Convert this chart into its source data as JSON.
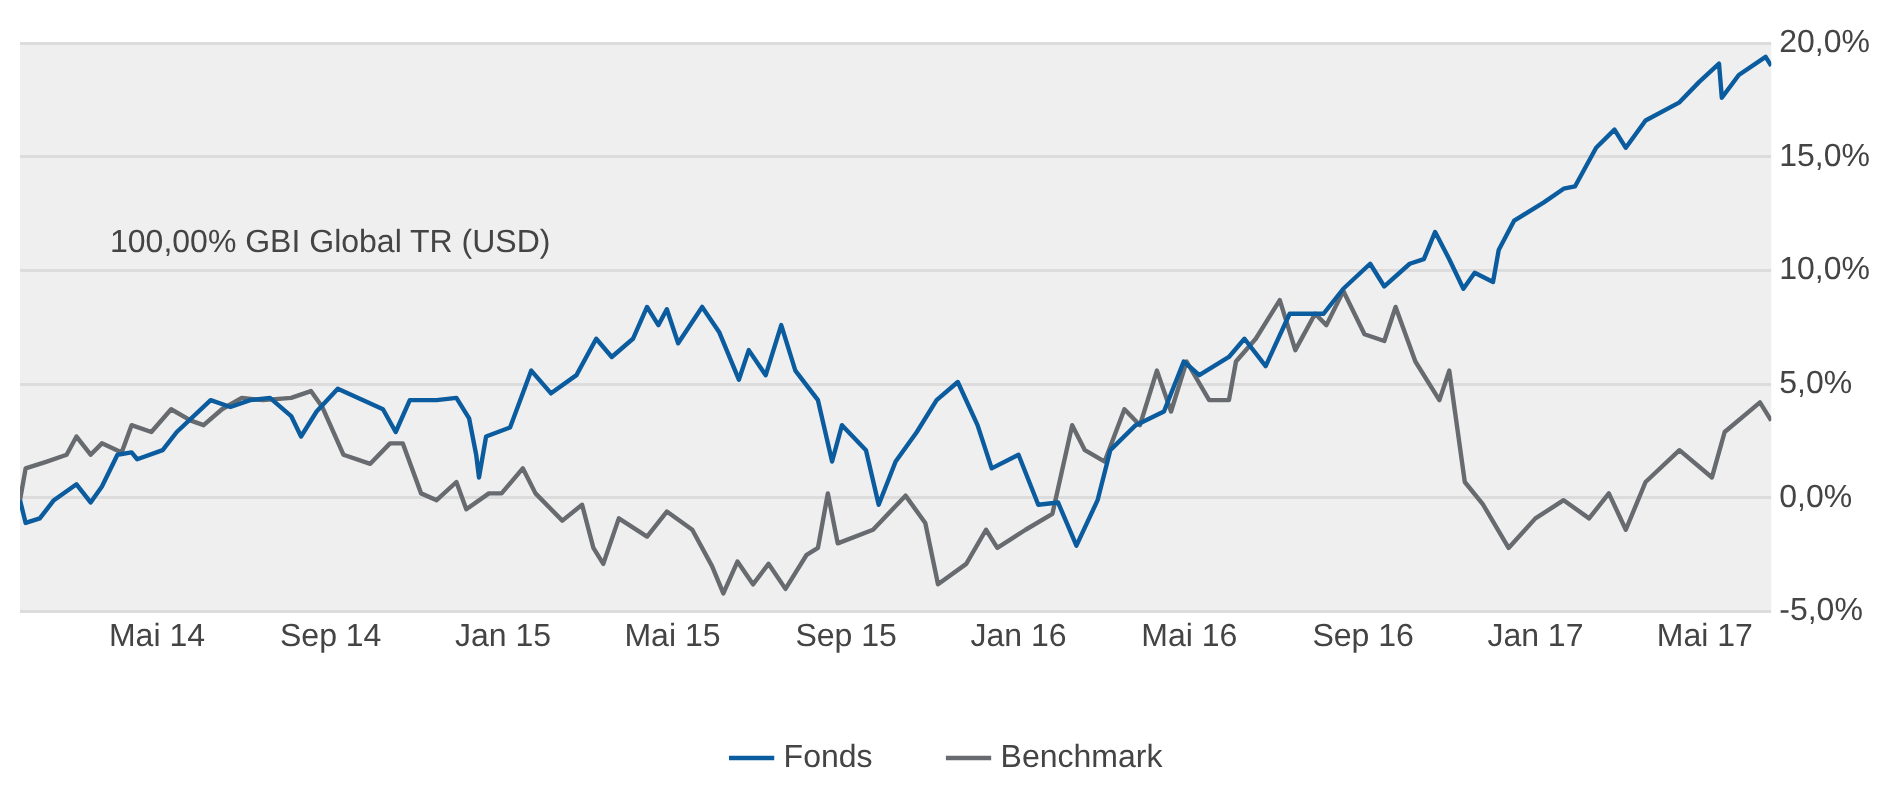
{
  "chart_data": {
    "type": "line",
    "annotations": [
      "100,00% GBI Global TR (USD)"
    ],
    "xlim": [
      "2014-01-24",
      "2017-06-17"
    ],
    "xticks": [
      {
        "value": "2014-05",
        "label": "Mai 14"
      },
      {
        "value": "2014-09",
        "label": "Sep 14"
      },
      {
        "value": "2015-01",
        "label": "Jan 15"
      },
      {
        "value": "2015-05",
        "label": "Mai 15"
      },
      {
        "value": "2015-09",
        "label": "Sep 15"
      },
      {
        "value": "2016-01",
        "label": "Jan 16"
      },
      {
        "value": "2016-05",
        "label": "Mai 16"
      },
      {
        "value": "2016-09",
        "label": "Sep 16"
      },
      {
        "value": "2017-01",
        "label": "Jan 17"
      },
      {
        "value": "2017-05",
        "label": "Mai 17"
      }
    ],
    "ylim": [
      -5,
      20
    ],
    "yticks": [
      {
        "value": -5,
        "label": "-5,0%"
      },
      {
        "value": 0,
        "label": "0,0%"
      },
      {
        "value": 5,
        "label": "5,0%"
      },
      {
        "value": 10,
        "label": "10,0%"
      },
      {
        "value": 15,
        "label": "15,0%"
      },
      {
        "value": 20,
        "label": "20,0%"
      }
    ],
    "grid": "y",
    "legend": "bottom",
    "marker": "none",
    "line_style": "solid",
    "series": [
      {
        "name": "Fonds",
        "color": "#0b5c9e",
        "x": [
          "2014-01-24",
          "2014-01-28",
          "2014-02-07",
          "2014-02-17",
          "2014-03-05",
          "2014-03-15",
          "2014-03-23",
          "2014-04-03",
          "2014-04-13",
          "2014-04-17",
          "2014-05-05",
          "2014-05-15",
          "2014-06-08",
          "2014-06-22",
          "2014-07-06",
          "2014-07-20",
          "2014-08-04",
          "2014-08-11",
          "2014-08-22",
          "2014-09-06",
          "2014-09-24",
          "2014-10-08",
          "2014-10-17",
          "2014-10-27",
          "2014-11-15",
          "2014-11-29",
          "2014-12-08",
          "2014-12-13",
          "2014-12-15",
          "2014-12-20",
          "2015-01-06",
          "2015-01-21",
          "2015-02-04",
          "2015-02-22",
          "2015-03-08",
          "2015-03-19",
          "2015-04-03",
          "2015-04-13",
          "2015-04-21",
          "2015-04-27",
          "2015-05-05",
          "2015-05-22",
          "2015-06-03",
          "2015-06-17",
          "2015-06-24",
          "2015-07-06",
          "2015-07-17",
          "2015-07-27",
          "2015-08-12",
          "2015-08-22",
          "2015-08-29",
          "2015-09-15",
          "2015-09-24",
          "2015-10-06",
          "2015-10-21",
          "2015-11-04",
          "2015-11-19",
          "2015-12-03",
          "2015-12-13",
          "2016-01-01",
          "2016-01-15",
          "2016-01-29",
          "2016-02-11",
          "2016-02-26",
          "2016-03-06",
          "2016-03-24",
          "2016-04-13",
          "2016-04-27",
          "2016-05-08",
          "2016-05-29",
          "2016-06-09",
          "2016-06-24",
          "2016-07-11",
          "2016-08-04",
          "2016-08-18",
          "2016-09-06",
          "2016-09-16",
          "2016-10-04",
          "2016-10-14",
          "2016-10-22",
          "2016-11-01",
          "2016-11-11",
          "2016-11-19",
          "2016-12-02",
          "2016-12-06",
          "2016-12-17",
          "2017-01-07",
          "2017-01-21",
          "2017-01-29",
          "2017-02-13",
          "2017-02-26",
          "2017-03-06",
          "2017-03-20",
          "2017-04-13",
          "2017-04-27",
          "2017-05-11",
          "2017-05-13",
          "2017-05-25",
          "2017-06-13",
          "2017-06-17"
        ],
        "values": [
          -0.1,
          -1.1,
          -0.9,
          -0.1,
          0.6,
          -0.2,
          0.5,
          1.9,
          2.0,
          1.7,
          2.1,
          2.9,
          4.3,
          4.0,
          4.3,
          4.4,
          3.6,
          2.7,
          3.8,
          4.8,
          4.3,
          3.9,
          2.9,
          4.3,
          4.3,
          4.4,
          3.5,
          1.9,
          0.9,
          2.7,
          3.1,
          5.6,
          4.6,
          5.4,
          7.0,
          6.2,
          7.0,
          8.4,
          7.6,
          8.3,
          6.8,
          8.4,
          7.3,
          5.2,
          6.5,
          5.4,
          7.6,
          5.6,
          4.3,
          1.6,
          3.2,
          2.1,
          -0.3,
          1.6,
          2.9,
          4.3,
          5.1,
          3.2,
          1.3,
          1.9,
          -0.3,
          -0.2,
          -2.1,
          -0.1,
          2.1,
          3.2,
          3.8,
          6.0,
          5.4,
          6.2,
          7.0,
          5.8,
          8.1,
          8.1,
          9.2,
          10.3,
          9.3,
          10.3,
          10.5,
          11.7,
          10.5,
          9.2,
          9.9,
          9.5,
          10.9,
          12.2,
          13.0,
          13.6,
          13.7,
          15.4,
          16.2,
          15.4,
          16.6,
          17.4,
          18.3,
          19.1,
          17.6,
          18.6,
          19.4,
          19.0
        ]
      },
      {
        "name": "Benchmark",
        "color": "#676a6e",
        "x": [
          "2014-01-24",
          "2014-01-28",
          "2014-02-12",
          "2014-02-26",
          "2014-03-05",
          "2014-03-15",
          "2014-03-23",
          "2014-04-06",
          "2014-04-13",
          "2014-04-27",
          "2014-05-11",
          "2014-05-25",
          "2014-06-03",
          "2014-06-16",
          "2014-06-30",
          "2014-07-15",
          "2014-08-04",
          "2014-08-18",
          "2014-08-26",
          "2014-09-10",
          "2014-09-29",
          "2014-10-13",
          "2014-10-22",
          "2014-11-04",
          "2014-11-15",
          "2014-11-29",
          "2014-12-06",
          "2014-12-22",
          "2014-12-31",
          "2015-01-15",
          "2015-01-24",
          "2015-02-12",
          "2015-02-26",
          "2015-03-06",
          "2015-03-13",
          "2015-03-24",
          "2015-04-13",
          "2015-04-27",
          "2015-05-15",
          "2015-05-29",
          "2015-06-06",
          "2015-06-16",
          "2015-06-27",
          "2015-07-08",
          "2015-07-20",
          "2015-08-04",
          "2015-08-12",
          "2015-08-19",
          "2015-08-26",
          "2015-09-20",
          "2015-10-13",
          "2015-10-27",
          "2015-11-05",
          "2015-11-25",
          "2015-12-09",
          "2015-12-17",
          "2016-01-06",
          "2016-01-25",
          "2016-02-08",
          "2016-02-17",
          "2016-03-02",
          "2016-03-16",
          "2016-03-27",
          "2016-04-08",
          "2016-04-18",
          "2016-04-29",
          "2016-05-15",
          "2016-05-29",
          "2016-06-03",
          "2016-06-17",
          "2016-07-04",
          "2016-07-15",
          "2016-07-29",
          "2016-08-06",
          "2016-08-18",
          "2016-09-02",
          "2016-09-16",
          "2016-09-24",
          "2016-10-08",
          "2016-10-25",
          "2016-11-01",
          "2016-11-12",
          "2016-11-25",
          "2016-12-13",
          "2017-01-01",
          "2017-01-21",
          "2017-02-08",
          "2017-02-22",
          "2017-03-06",
          "2017-03-20",
          "2017-04-13",
          "2017-05-06",
          "2017-05-15",
          "2017-06-09",
          "2017-06-17"
        ],
        "values": [
          -0.1,
          1.3,
          1.6,
          1.9,
          2.7,
          1.9,
          2.4,
          2.0,
          3.2,
          2.9,
          3.9,
          3.4,
          3.2,
          3.9,
          4.4,
          4.3,
          4.4,
          4.7,
          4.0,
          1.9,
          1.5,
          2.4,
          2.4,
          0.2,
          -0.1,
          0.7,
          -0.5,
          0.2,
          0.2,
          1.3,
          0.2,
          -1.0,
          -0.3,
          -2.2,
          -2.9,
          -0.9,
          -1.7,
          -0.6,
          -1.4,
          -3.0,
          -4.2,
          -2.8,
          -3.8,
          -2.9,
          -4.0,
          -2.5,
          -2.2,
          0.2,
          -2.0,
          -1.4,
          0.1,
          -1.1,
          -3.8,
          -2.9,
          -1.4,
          -2.2,
          -1.4,
          -0.7,
          3.2,
          2.1,
          1.6,
          3.9,
          3.2,
          5.6,
          3.8,
          6.0,
          4.3,
          4.3,
          6.0,
          7.0,
          8.7,
          6.5,
          8.1,
          7.6,
          9.1,
          7.2,
          6.9,
          8.4,
          6.0,
          4.3,
          5.6,
          0.7,
          -0.3,
          -2.2,
          -0.9,
          -0.1,
          -0.9,
          0.2,
          -1.4,
          0.7,
          2.1,
          0.9,
          2.9,
          4.2,
          3.4
        ]
      }
    ]
  }
}
